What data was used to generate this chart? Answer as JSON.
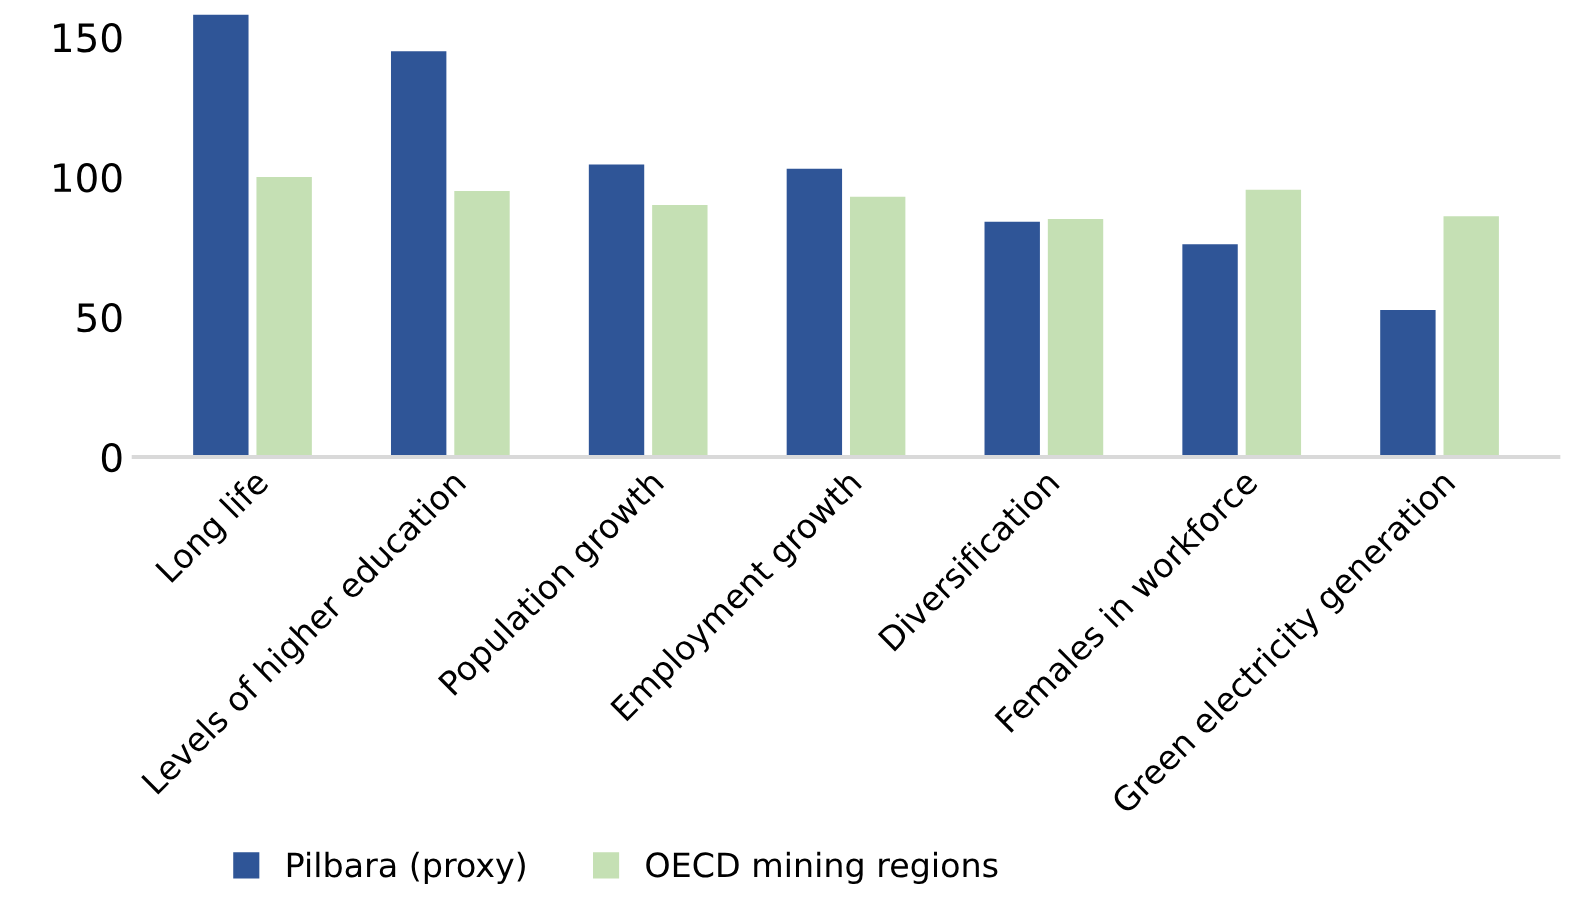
{
  "chart_data": {
    "type": "bar",
    "categories": [
      "Long life",
      "Levels of higher education",
      "Population growth",
      "Employment growth",
      "Diversification",
      "Females in workforce",
      "Green electricity generation"
    ],
    "series": [
      {
        "name": "Pilbara (proxy)",
        "color": "#2f5597",
        "values": [
          158,
          145,
          104.5,
          103,
          84,
          76,
          52.5
        ]
      },
      {
        "name": "OECD mining regions",
        "color": "#c5e0b4",
        "values": [
          100,
          95,
          90,
          93,
          85,
          95.5,
          86
        ]
      }
    ],
    "ylim": [
      0,
      160
    ],
    "yticks": [
      0,
      50,
      100,
      150
    ],
    "grid": false,
    "legend": "bottom"
  }
}
